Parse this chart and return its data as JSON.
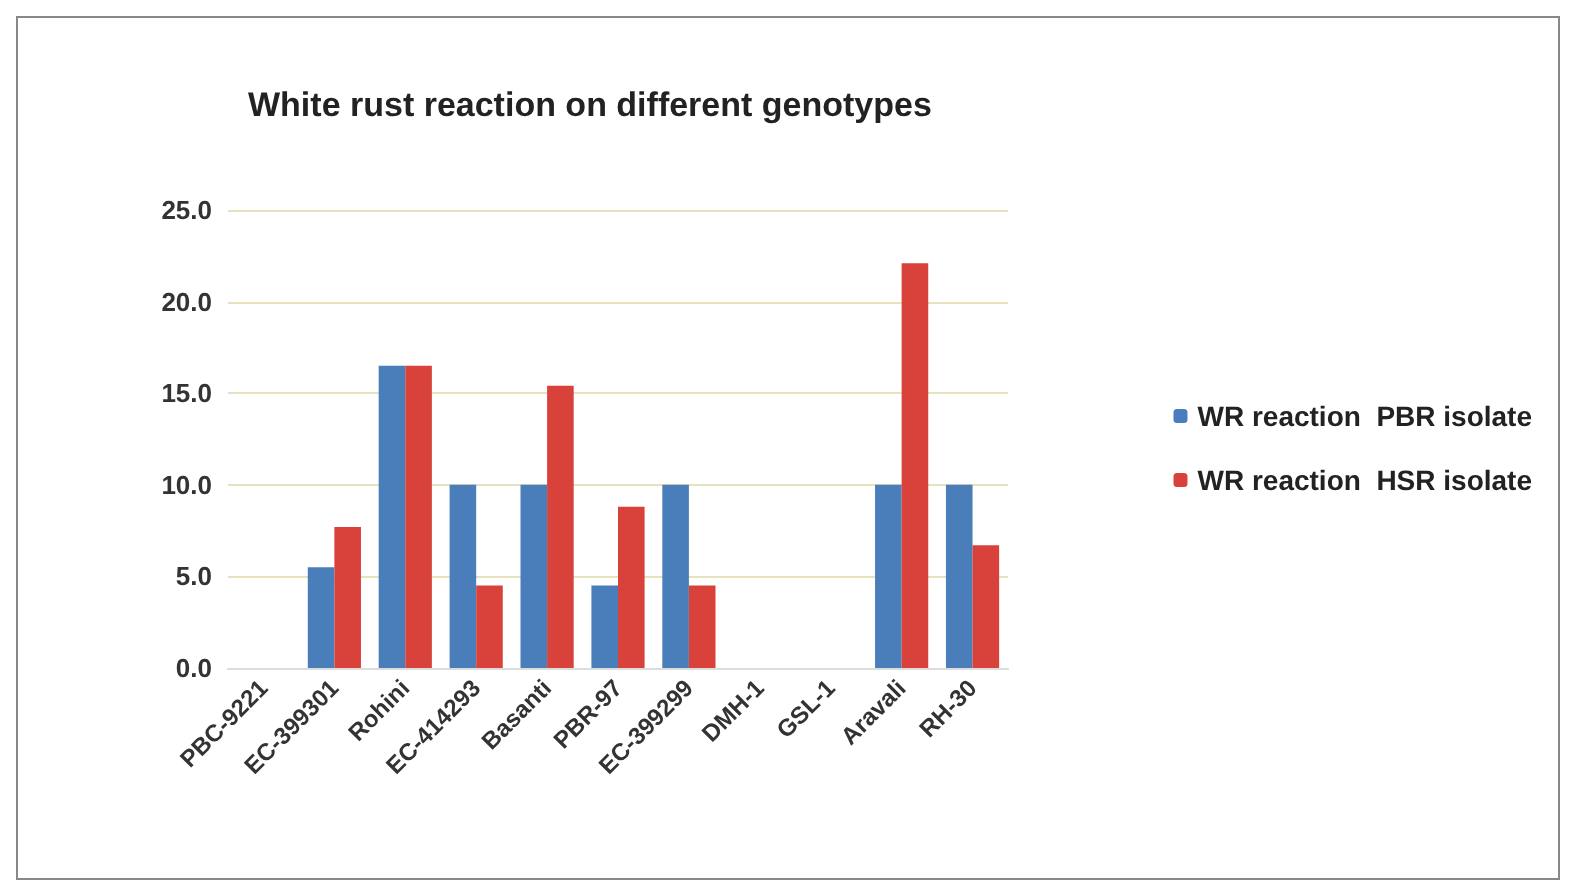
{
  "chart_data": {
    "type": "bar",
    "title": "White rust reaction on different genotypes",
    "categories": [
      "PBC-9221",
      "EC-399301",
      "Rohini",
      "EC-414293",
      "Basanti",
      "PBR-97",
      "EC-399299",
      "DMH-1",
      "GSL-1",
      "Aravali",
      "RH-30"
    ],
    "series": [
      {
        "name": "WR reaction  PBR isolate",
        "color": "#4a7ebb",
        "values": [
          0,
          5.5,
          16.5,
          10,
          10,
          4.5,
          10,
          0,
          0,
          10,
          10
        ]
      },
      {
        "name": "WR reaction  HSR isolate",
        "color": "#d9423a",
        "values": [
          0,
          7.7,
          16.5,
          4.5,
          15.4,
          8.8,
          4.5,
          0,
          0,
          22.1,
          6.7
        ]
      }
    ],
    "ylim": [
      0,
      25
    ],
    "yticks": [
      {
        "value": 0,
        "label": "0.0"
      },
      {
        "value": 5,
        "label": "5.0"
      },
      {
        "value": 10,
        "label": "10.0"
      },
      {
        "value": 15,
        "label": "15.0"
      },
      {
        "value": 20,
        "label": "20.0"
      },
      {
        "value": 25,
        "label": "25.0"
      }
    ],
    "grid": "y",
    "legend": "right"
  }
}
